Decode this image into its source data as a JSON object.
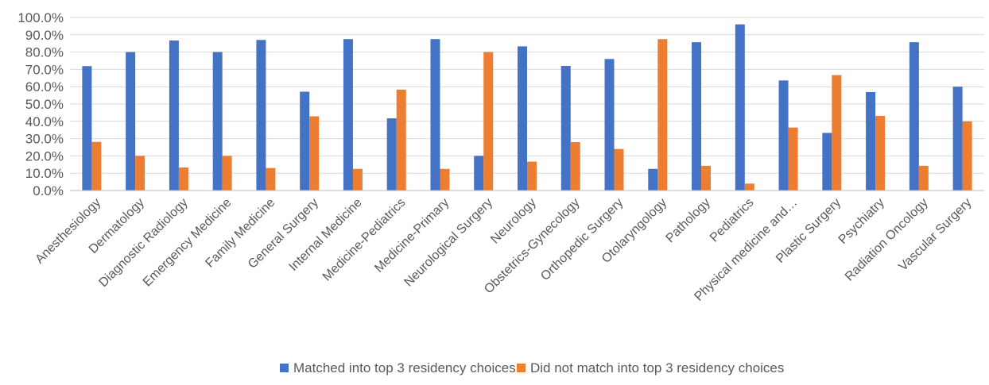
{
  "chart_data": {
    "type": "bar",
    "categories": [
      "Anesthesiology",
      "Dermatology",
      "Diagnostic Radiology",
      "Emergency Medicine",
      "Family Medicine",
      "General Surgery",
      "Internal Medicine",
      "Medicine-Pediatrics",
      "Medicine-Primary",
      "Neurological Surgery",
      "Neurology",
      "Obstetrics-Gynecology",
      "Orthopedic Surgery",
      "Otolaryngology",
      "Pathology",
      "Pediatrics",
      "Physical medicine and…",
      "Plastic Surgery",
      "Psychiatry",
      "Radiation Oncology",
      "Vascular Surgery"
    ],
    "series": [
      {
        "name": "Matched into top 3 residency choices",
        "color": "#4472C4",
        "values": [
          71.9,
          80.0,
          86.7,
          80.0,
          87.0,
          57.1,
          87.5,
          41.7,
          87.5,
          20.0,
          83.3,
          72.0,
          76.0,
          12.5,
          85.7,
          96.0,
          63.6,
          33.3,
          56.9,
          85.7,
          60.0
        ]
      },
      {
        "name": "Did not match into top 3 residency choices",
        "color": "#ED7D31",
        "values": [
          28.1,
          20.0,
          13.3,
          20.0,
          13.0,
          42.9,
          12.5,
          58.3,
          12.5,
          80.0,
          16.7,
          28.0,
          24.0,
          87.5,
          14.3,
          4.0,
          36.4,
          66.7,
          43.1,
          14.3,
          40.0
        ]
      }
    ],
    "yticks": [
      "0.0%",
      "10.0%",
      "20.0%",
      "30.0%",
      "40.0%",
      "50.0%",
      "60.0%",
      "70.0%",
      "80.0%",
      "90.0%",
      "100.0%"
    ],
    "ylim": [
      0,
      100
    ],
    "grid": true,
    "legend_position": "bottom",
    "gridline_color": "#D9D9D9",
    "axis_line_color": "#BFBFBF",
    "text_color": "#595959"
  }
}
